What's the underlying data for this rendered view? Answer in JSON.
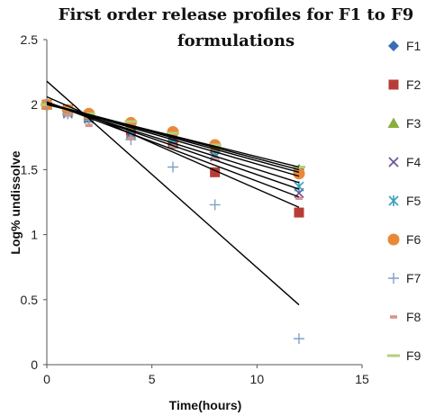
{
  "chart_data": {
    "type": "scatter",
    "title": "First order release profiles for F1 to F9 formulations",
    "xlabel": "Time(hours)",
    "ylabel": "Log% undissolve",
    "xlim": [
      0,
      15
    ],
    "ylim": [
      0,
      2.5
    ],
    "x_ticks": [
      "0",
      "5",
      "10",
      "15"
    ],
    "y_ticks": [
      "0",
      "0.5",
      "1",
      "1.5",
      "2",
      "2.5"
    ],
    "grid": false,
    "legend_position": "right",
    "series": [
      {
        "name": "F1",
        "marker": "diamond",
        "color": "#3b6db4",
        "points": [
          [
            0,
            2.0
          ],
          [
            1,
            1.95
          ],
          [
            2,
            1.92
          ],
          [
            4,
            1.85
          ],
          [
            6,
            1.77
          ],
          [
            8,
            1.68
          ],
          [
            12,
            1.5
          ]
        ]
      },
      {
        "name": "F2",
        "marker": "square",
        "color": "#b83c36",
        "points": [
          [
            0,
            2.0
          ],
          [
            1,
            1.96
          ],
          [
            2,
            1.9
          ],
          [
            4,
            1.8
          ],
          [
            6,
            1.7
          ],
          [
            8,
            1.48
          ],
          [
            12,
            1.17
          ]
        ]
      },
      {
        "name": "F3",
        "marker": "triangle",
        "color": "#8aae3c",
        "points": [
          [
            0,
            2.0
          ],
          [
            1,
            1.95
          ],
          [
            2,
            1.92
          ],
          [
            4,
            1.84
          ],
          [
            6,
            1.75
          ],
          [
            8,
            1.66
          ],
          [
            12,
            1.49
          ]
        ]
      },
      {
        "name": "F4",
        "marker": "x",
        "color": "#6a4f9a",
        "points": [
          [
            0,
            2.0
          ],
          [
            1,
            1.94
          ],
          [
            2,
            1.9
          ],
          [
            4,
            1.78
          ],
          [
            6,
            1.72
          ],
          [
            8,
            1.6
          ],
          [
            12,
            1.32
          ]
        ]
      },
      {
        "name": "F5",
        "marker": "star",
        "color": "#3aa0b8",
        "points": [
          [
            0,
            2.0
          ],
          [
            1,
            1.93
          ],
          [
            2,
            1.89
          ],
          [
            4,
            1.77
          ],
          [
            6,
            1.7
          ],
          [
            8,
            1.62
          ],
          [
            12,
            1.37
          ]
        ]
      },
      {
        "name": "F6",
        "marker": "circle",
        "color": "#e8893a",
        "points": [
          [
            0,
            2.0
          ],
          [
            1,
            1.96
          ],
          [
            2,
            1.93
          ],
          [
            4,
            1.86
          ],
          [
            6,
            1.79
          ],
          [
            8,
            1.69
          ],
          [
            12,
            1.47
          ]
        ]
      },
      {
        "name": "F7",
        "marker": "plus",
        "color": "#7fa2cc",
        "points": [
          [
            0,
            2.0
          ],
          [
            1,
            1.93
          ],
          [
            2,
            1.88
          ],
          [
            4,
            1.73
          ],
          [
            6,
            1.52
          ],
          [
            8,
            1.23
          ],
          [
            12,
            0.2
          ]
        ]
      },
      {
        "name": "F8",
        "marker": "dash",
        "color": "#d9938e",
        "points": [
          [
            0,
            2.0
          ],
          [
            1,
            1.92
          ],
          [
            2,
            1.84
          ],
          [
            4,
            1.74
          ],
          [
            6,
            1.68
          ],
          [
            8,
            1.58
          ],
          [
            12,
            1.28
          ]
        ]
      },
      {
        "name": "F9",
        "marker": "hbar",
        "color": "#b6cf7a",
        "points": [
          [
            0,
            2.0
          ],
          [
            1,
            1.97
          ],
          [
            2,
            1.93
          ],
          [
            4,
            1.87
          ],
          [
            6,
            1.78
          ],
          [
            8,
            1.69
          ],
          [
            12,
            1.52
          ]
        ]
      }
    ],
    "trendlines": [
      {
        "x": [
          0,
          12
        ],
        "y": [
          2.18,
          0.46
        ]
      },
      {
        "x": [
          0,
          12
        ],
        "y": [
          2.06,
          1.21
        ]
      },
      {
        "x": [
          0,
          12
        ],
        "y": [
          2.02,
          1.29
        ]
      },
      {
        "x": [
          0,
          12
        ],
        "y": [
          2.02,
          1.35
        ]
      },
      {
        "x": [
          0,
          12
        ],
        "y": [
          2.01,
          1.4
        ]
      },
      {
        "x": [
          0,
          12
        ],
        "y": [
          2.01,
          1.45
        ]
      },
      {
        "x": [
          0,
          12
        ],
        "y": [
          2.01,
          1.48
        ]
      },
      {
        "x": [
          0,
          12
        ],
        "y": [
          2.01,
          1.5
        ]
      },
      {
        "x": [
          0,
          12
        ],
        "y": [
          2.0,
          1.52
        ]
      }
    ]
  }
}
